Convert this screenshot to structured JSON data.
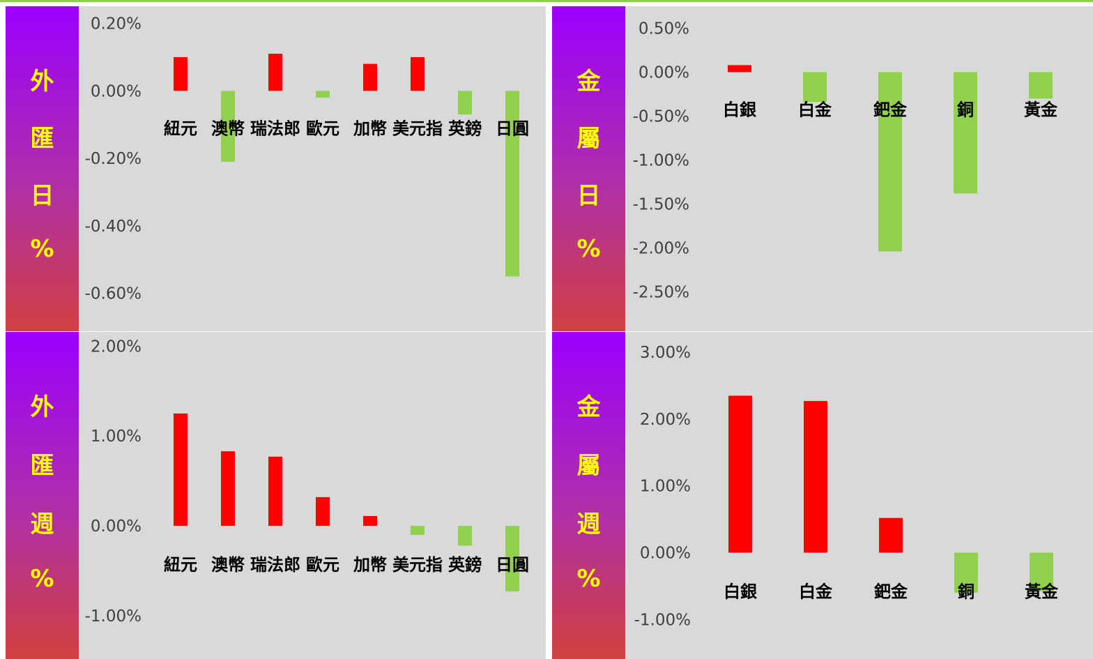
{
  "panels": [
    {
      "id": "fx-daily",
      "side_label": [
        "外",
        "匯",
        "日",
        "%"
      ],
      "chart_data": {
        "type": "bar",
        "categories": [
          "紐元",
          "澳幣",
          "瑞法郎",
          "歐元",
          "加幣",
          "美元指",
          "英鎊",
          "日圓"
        ],
        "values": [
          0.1,
          -0.21,
          0.11,
          -0.02,
          0.08,
          0.1,
          -0.07,
          -0.55
        ],
        "ylim": [
          -0.7,
          0.23
        ],
        "yticks": [
          0.2,
          0.0,
          -0.2,
          -0.4,
          -0.6
        ],
        "ytick_labels": [
          "0.20%",
          "0.00%",
          "-0.20%",
          "-0.40%",
          "-0.60%"
        ],
        "positive_color": "#ff0000",
        "negative_color": "#92d050"
      }
    },
    {
      "id": "metals-daily",
      "side_label": [
        "金",
        "屬",
        "日",
        "%"
      ],
      "chart_data": {
        "type": "bar",
        "categories": [
          "白銀",
          "白金",
          "鈀金",
          "銅",
          "黃金"
        ],
        "values": [
          0.08,
          -0.34,
          -2.04,
          -1.38,
          -0.3
        ],
        "ylim": [
          -2.9,
          0.67
        ],
        "yticks": [
          0.5,
          0.0,
          -0.5,
          -1.0,
          -1.5,
          -2.0,
          -2.5
        ],
        "ytick_labels": [
          "0.50%",
          "0.00%",
          "-0.50%",
          "-1.00%",
          "-1.50%",
          "-2.00%",
          "-2.50%"
        ],
        "positive_color": "#ff0000",
        "negative_color": "#92d050"
      }
    },
    {
      "id": "fx-weekly",
      "side_label": [
        "外",
        "匯",
        "週",
        "%"
      ],
      "chart_data": {
        "type": "bar",
        "categories": [
          "紐元",
          "澳幣",
          "瑞法郎",
          "歐元",
          "加幣",
          "美元指",
          "英鎊",
          "日圓"
        ],
        "values": [
          1.25,
          0.83,
          0.77,
          0.32,
          0.11,
          -0.1,
          -0.22,
          -0.73
        ],
        "ylim": [
          -1.45,
          2.08
        ],
        "yticks": [
          2.0,
          1.0,
          0.0,
          -1.0
        ],
        "ytick_labels": [
          "2.00%",
          "1.00%",
          "0.00%",
          "-1.00%"
        ],
        "positive_color": "#ff0000",
        "negative_color": "#92d050"
      }
    },
    {
      "id": "metals-weekly",
      "side_label": [
        "金",
        "屬",
        "週",
        "%"
      ],
      "chart_data": {
        "type": "bar",
        "categories": [
          "白銀",
          "白金",
          "鈀金",
          "銅",
          "黃金"
        ],
        "values": [
          2.35,
          2.27,
          0.52,
          -0.6,
          -0.58
        ],
        "ylim": [
          -1.55,
          3.2
        ],
        "yticks": [
          3.0,
          2.0,
          1.0,
          0.0,
          -1.0
        ],
        "ytick_labels": [
          "3.00%",
          "2.00%",
          "1.00%",
          "0.00%",
          "-1.00%"
        ],
        "positive_color": "#ff0000",
        "negative_color": "#92d050"
      }
    }
  ]
}
